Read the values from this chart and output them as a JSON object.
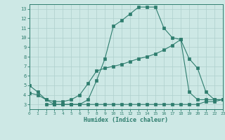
{
  "line1_x": [
    0,
    1,
    2,
    3,
    4,
    5,
    6,
    7,
    8,
    9,
    10,
    11,
    12,
    13,
    14,
    15,
    16,
    17,
    18,
    19,
    20,
    21,
    22,
    23
  ],
  "line1_y": [
    5.0,
    4.3,
    3.5,
    3.0,
    3.0,
    3.0,
    3.0,
    3.5,
    5.5,
    7.8,
    11.2,
    11.8,
    12.5,
    13.2,
    13.2,
    13.2,
    11.0,
    10.0,
    9.8,
    4.3,
    3.5,
    3.5,
    3.5,
    3.5
  ],
  "line2_x": [
    0,
    1,
    2,
    3,
    4,
    5,
    6,
    7,
    8,
    9,
    10,
    11,
    12,
    13,
    14,
    15,
    16,
    17,
    18,
    19,
    20,
    21,
    22,
    23
  ],
  "line2_y": [
    4.2,
    4.0,
    3.5,
    3.3,
    3.3,
    3.5,
    4.0,
    5.2,
    6.5,
    6.8,
    7.0,
    7.2,
    7.5,
    7.8,
    8.0,
    8.3,
    8.7,
    9.2,
    9.8,
    7.8,
    6.8,
    4.3,
    3.5,
    3.5
  ],
  "line3_x": [
    2,
    3,
    4,
    5,
    6,
    7,
    8,
    9,
    10,
    11,
    12,
    13,
    14,
    15,
    16,
    17,
    18,
    19,
    20,
    21,
    22,
    23
  ],
  "line3_y": [
    3.0,
    3.0,
    3.0,
    3.0,
    3.0,
    3.0,
    3.0,
    3.0,
    3.0,
    3.0,
    3.0,
    3.0,
    3.0,
    3.0,
    3.0,
    3.0,
    3.0,
    3.0,
    3.0,
    3.3,
    3.3,
    3.5
  ],
  "line_color": "#2e7d6e",
  "bg_color": "#cde8e5",
  "grid_color": "#aecfcc",
  "xlabel": "Humidex (Indice chaleur)",
  "xlim": [
    0,
    23
  ],
  "ylim": [
    2.5,
    13.5
  ],
  "yticks": [
    3,
    4,
    5,
    6,
    7,
    8,
    9,
    10,
    11,
    12,
    13
  ],
  "xticks": [
    0,
    1,
    2,
    3,
    4,
    5,
    6,
    7,
    8,
    9,
    10,
    11,
    12,
    13,
    14,
    15,
    16,
    17,
    18,
    19,
    20,
    21,
    22,
    23
  ]
}
